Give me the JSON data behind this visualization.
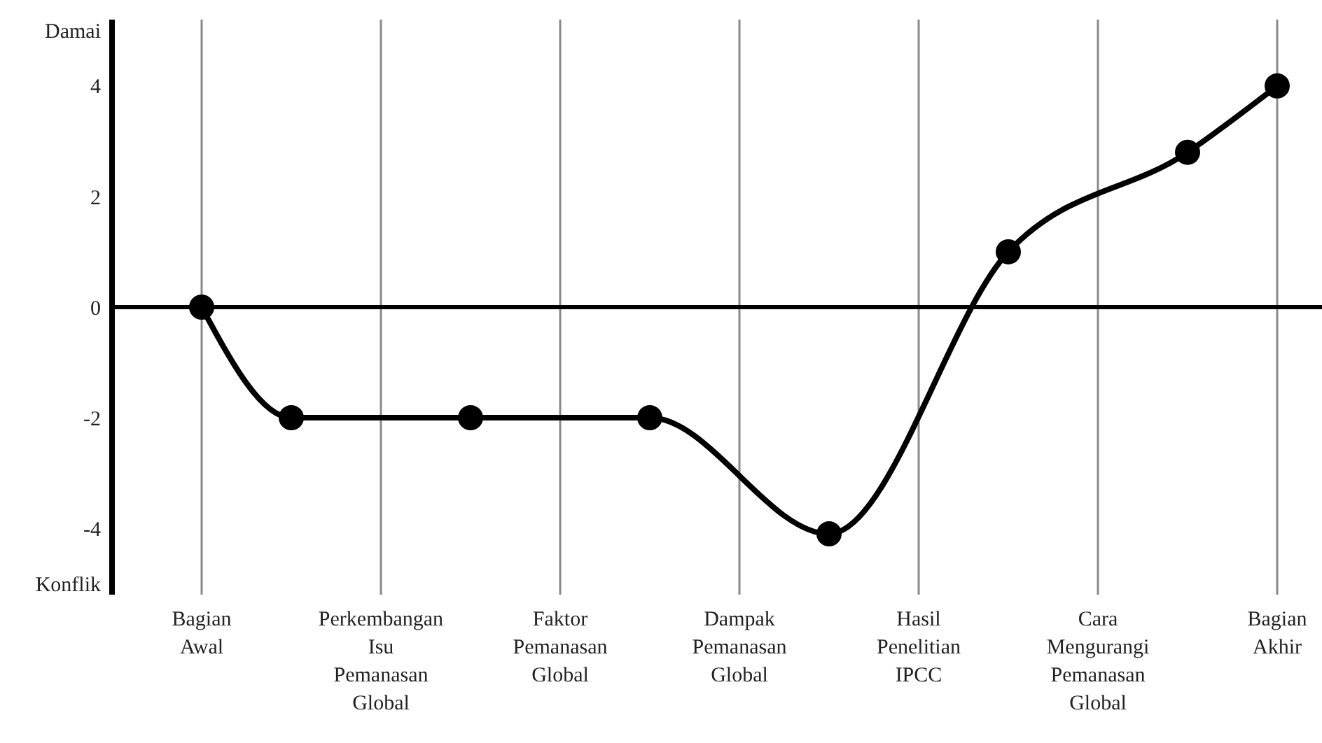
{
  "chart_data": {
    "type": "line",
    "categories": [
      "Bagian\nAwal",
      null,
      "Perkembangan\nIsu\nPemanasan\nGlobal",
      null,
      "Faktor\nPemanasan\nGlobal",
      null,
      "Dampak\nPemanasan\nGlobal",
      null,
      "Hasil\nPenelitian\nIPCC",
      null,
      "Cara\nMengurangi\nPemanasan\nGlobal",
      null,
      "Bagian\nAkhir"
    ],
    "series": [
      {
        "color": "#000000",
        "values": [
          0,
          -2,
          null,
          -2,
          null,
          -2,
          null,
          -4.1,
          null,
          1,
          null,
          2.8,
          4
        ]
      }
    ],
    "ylim": [
      -5.2,
      5.2
    ],
    "yticks": [
      {
        "value": 5,
        "label": "Damai"
      },
      4,
      2,
      0,
      -2,
      -4,
      {
        "value": -5,
        "label": "Konflik"
      }
    ],
    "ref_lines": [
      {
        "axis": "y",
        "value": 0,
        "color": "#000000"
      }
    ],
    "grid": "x",
    "marker": "circle",
    "line_style": "solid"
  }
}
